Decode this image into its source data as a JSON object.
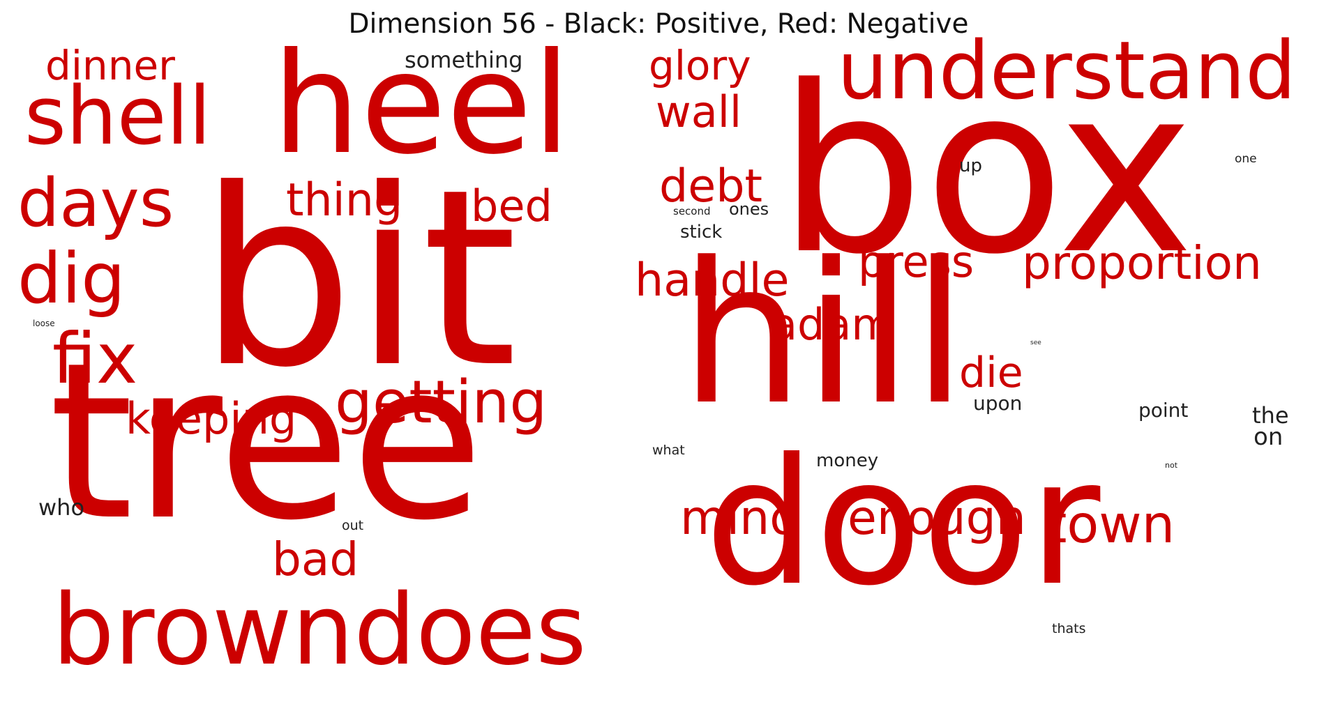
{
  "title": "Dimension 56 - Black: Positive, Red: Negative",
  "colors": {
    "negative": "#cc0000",
    "positive": "#222222"
  },
  "words": [
    {
      "text": "box",
      "polarity": "negative"
    },
    {
      "text": "bit",
      "polarity": "negative"
    },
    {
      "text": "tree",
      "polarity": "negative"
    },
    {
      "text": "hill",
      "polarity": "negative"
    },
    {
      "text": "door",
      "polarity": "negative"
    },
    {
      "text": "heel",
      "polarity": "negative"
    },
    {
      "text": "browndoes",
      "polarity": "negative"
    },
    {
      "text": "understand",
      "polarity": "negative"
    },
    {
      "text": "shell",
      "polarity": "negative"
    },
    {
      "text": "days",
      "polarity": "negative"
    },
    {
      "text": "dig",
      "polarity": "negative"
    },
    {
      "text": "fix",
      "polarity": "negative"
    },
    {
      "text": "getting",
      "polarity": "negative"
    },
    {
      "text": "keeping",
      "polarity": "negative"
    },
    {
      "text": "dinner",
      "polarity": "negative"
    },
    {
      "text": "glory",
      "polarity": "negative"
    },
    {
      "text": "wall",
      "polarity": "negative"
    },
    {
      "text": "debt",
      "polarity": "negative"
    },
    {
      "text": "thing",
      "polarity": "negative"
    },
    {
      "text": "bed",
      "polarity": "negative"
    },
    {
      "text": "handle",
      "polarity": "negative"
    },
    {
      "text": "press",
      "polarity": "negative"
    },
    {
      "text": "proportion",
      "polarity": "negative"
    },
    {
      "text": "adam",
      "polarity": "negative"
    },
    {
      "text": "die",
      "polarity": "negative"
    },
    {
      "text": "mind",
      "polarity": "negative"
    },
    {
      "text": "enough",
      "polarity": "negative"
    },
    {
      "text": "town",
      "polarity": "negative"
    },
    {
      "text": "bad",
      "polarity": "negative"
    },
    {
      "text": "something",
      "polarity": "positive"
    },
    {
      "text": "up",
      "polarity": "positive"
    },
    {
      "text": "one",
      "polarity": "positive"
    },
    {
      "text": "ones",
      "polarity": "positive"
    },
    {
      "text": "second",
      "polarity": "positive"
    },
    {
      "text": "stick",
      "polarity": "positive"
    },
    {
      "text": "loose",
      "polarity": "positive"
    },
    {
      "text": "see",
      "polarity": "positive"
    },
    {
      "text": "upon",
      "polarity": "positive"
    },
    {
      "text": "point",
      "polarity": "positive"
    },
    {
      "text": "the",
      "polarity": "positive"
    },
    {
      "text": "on",
      "polarity": "positive"
    },
    {
      "text": "what",
      "polarity": "positive"
    },
    {
      "text": "money",
      "polarity": "positive"
    },
    {
      "text": "not",
      "polarity": "positive"
    },
    {
      "text": "who",
      "polarity": "positive"
    },
    {
      "text": "out",
      "polarity": "positive"
    },
    {
      "text": "thats",
      "polarity": "positive"
    }
  ]
}
